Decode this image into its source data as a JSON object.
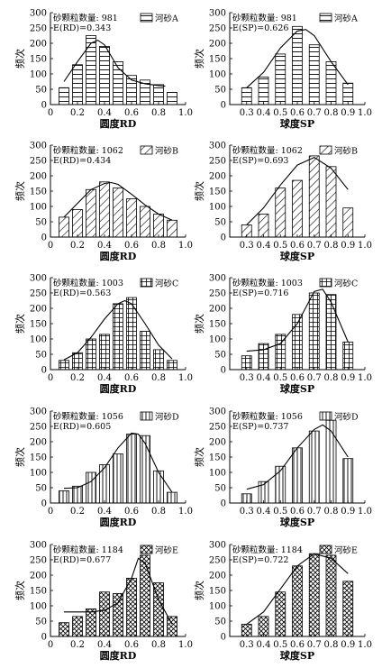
{
  "y_axis_label": "频次",
  "chart_data": [
    {
      "id": "A-RD",
      "type": "bar",
      "xlabel": "圆度RD",
      "ylabel": "频次",
      "count_label": "砂颗粒数量: 981",
      "stat_label": "E(RD)=0.343",
      "legend": "河砂A",
      "pattern": "hlines",
      "xlim": [
        0,
        1
      ],
      "x_ticks": [
        "0",
        "0.2",
        "0.4",
        "0.6",
        "0.8",
        "1.0"
      ],
      "ylim": [
        0,
        300
      ],
      "y_ticks": [
        "0",
        "50",
        "100",
        "150",
        "200",
        "250",
        "300"
      ],
      "x": [
        0.1,
        0.2,
        0.3,
        0.4,
        0.5,
        0.6,
        0.7,
        0.8,
        0.9
      ],
      "values": [
        55,
        130,
        225,
        190,
        140,
        95,
        80,
        65,
        40
      ],
      "curve": [
        [
          0.1,
          75
        ],
        [
          0.2,
          140
        ],
        [
          0.3,
          200
        ],
        [
          0.35,
          210
        ],
        [
          0.4,
          195
        ],
        [
          0.5,
          120
        ],
        [
          0.6,
          80
        ],
        [
          0.7,
          68
        ],
        [
          0.8,
          62
        ],
        [
          0.85,
          60
        ]
      ]
    },
    {
      "id": "A-SP",
      "type": "bar",
      "xlabel": "球度SP",
      "ylabel": "频次",
      "count_label": "砂颗粒数量: 981",
      "stat_label": "E(SP)=0.626",
      "legend": "河砂A",
      "pattern": "hlines",
      "xlim": [
        0.2,
        1.0
      ],
      "x_ticks": [
        "0.3",
        "0.4",
        "0.5",
        "0.6",
        "0.7",
        "0.8",
        "0.9",
        "1.0"
      ],
      "ylim": [
        0,
        300
      ],
      "y_ticks": [
        "0",
        "50",
        "100",
        "150",
        "200",
        "250",
        "300"
      ],
      "x": [
        0.3,
        0.4,
        0.5,
        0.6,
        0.7,
        0.8,
        0.9
      ],
      "values": [
        55,
        90,
        165,
        255,
        195,
        140,
        70
      ],
      "curve": [
        [
          0.3,
          55
        ],
        [
          0.4,
          105
        ],
        [
          0.5,
          185
        ],
        [
          0.6,
          240
        ],
        [
          0.65,
          245
        ],
        [
          0.7,
          225
        ],
        [
          0.8,
          140
        ],
        [
          0.9,
          65
        ]
      ]
    },
    {
      "id": "B-RD",
      "type": "bar",
      "xlabel": "圆度RD",
      "ylabel": "频次",
      "count_label": "砂颗粒数量: 1062",
      "stat_label": "E(RD)=0.434",
      "legend": "河砂B",
      "pattern": "diag",
      "xlim": [
        0,
        1
      ],
      "x_ticks": [
        "0",
        "0.2",
        "0.4",
        "0.6",
        "0.8",
        "1.0"
      ],
      "ylim": [
        0,
        300
      ],
      "y_ticks": [
        "0",
        "50",
        "100",
        "150",
        "200",
        "250",
        "300"
      ],
      "x": [
        0.1,
        0.2,
        0.3,
        0.4,
        0.5,
        0.6,
        0.7,
        0.8,
        0.9
      ],
      "values": [
        65,
        90,
        155,
        180,
        160,
        125,
        100,
        75,
        55
      ],
      "curve": [
        [
          0.1,
          65
        ],
        [
          0.2,
          110
        ],
        [
          0.3,
          155
        ],
        [
          0.4,
          175
        ],
        [
          0.45,
          178
        ],
        [
          0.5,
          172
        ],
        [
          0.6,
          140
        ],
        [
          0.7,
          105
        ],
        [
          0.8,
          75
        ],
        [
          0.9,
          55
        ]
      ]
    },
    {
      "id": "B-SP",
      "type": "bar",
      "xlabel": "球度SP",
      "ylabel": "频次",
      "count_label": "砂颗粒数量: 1062",
      "stat_label": "E(SP)=0.693",
      "legend": "河砂B",
      "pattern": "diag",
      "xlim": [
        0.2,
        1.0
      ],
      "x_ticks": [
        "0.3",
        "0.4",
        "0.5",
        "0.6",
        "0.7",
        "0.8",
        "0.9",
        "1.0"
      ],
      "ylim": [
        0,
        300
      ],
      "y_ticks": [
        "0",
        "50",
        "100",
        "150",
        "200",
        "250",
        "300"
      ],
      "x": [
        0.3,
        0.4,
        0.5,
        0.6,
        0.7,
        0.8,
        0.9
      ],
      "values": [
        40,
        75,
        160,
        185,
        265,
        230,
        95
      ],
      "curve": [
        [
          0.3,
          40
        ],
        [
          0.4,
          95
        ],
        [
          0.5,
          170
        ],
        [
          0.6,
          235
        ],
        [
          0.7,
          260
        ],
        [
          0.8,
          225
        ],
        [
          0.9,
          155
        ]
      ]
    },
    {
      "id": "C-RD",
      "type": "bar",
      "xlabel": "圆度RD",
      "ylabel": "频次",
      "count_label": "砂颗粒数量: 1003",
      "stat_label": "E(RD)=0.563",
      "legend": "河砂C",
      "pattern": "grid",
      "xlim": [
        0,
        1
      ],
      "x_ticks": [
        "0",
        "0.2",
        "0.4",
        "0.6",
        "0.8",
        "1.0"
      ],
      "ylim": [
        0,
        300
      ],
      "y_ticks": [
        "0",
        "50",
        "100",
        "150",
        "200",
        "250",
        "300"
      ],
      "x": [
        0.1,
        0.2,
        0.3,
        0.4,
        0.5,
        0.6,
        0.7,
        0.8,
        0.9
      ],
      "values": [
        30,
        55,
        100,
        115,
        215,
        235,
        125,
        65,
        30
      ],
      "curve": [
        [
          0.1,
          32
        ],
        [
          0.2,
          55
        ],
        [
          0.3,
          105
        ],
        [
          0.4,
          165
        ],
        [
          0.5,
          215
        ],
        [
          0.55,
          225
        ],
        [
          0.6,
          215
        ],
        [
          0.7,
          150
        ],
        [
          0.8,
          80
        ],
        [
          0.9,
          35
        ]
      ]
    },
    {
      "id": "C-SP",
      "type": "bar",
      "xlabel": "球度SP",
      "ylabel": "频次",
      "count_label": "砂颗粒数量: 1003",
      "stat_label": "E(SP)=0.716",
      "legend": "河砂C",
      "pattern": "grid",
      "xlim": [
        0.2,
        1.0
      ],
      "x_ticks": [
        "0.3",
        "0.4",
        "0.5",
        "0.6",
        "0.7",
        "0.8",
        "0.9",
        "1.0"
      ],
      "ylim": [
        0,
        300
      ],
      "y_ticks": [
        "0",
        "50",
        "100",
        "150",
        "200",
        "250",
        "300"
      ],
      "x": [
        0.3,
        0.4,
        0.5,
        0.6,
        0.7,
        0.8,
        0.9
      ],
      "values": [
        45,
        85,
        115,
        180,
        250,
        245,
        90
      ],
      "curve": [
        [
          0.3,
          60
        ],
        [
          0.4,
          65
        ],
        [
          0.5,
          85
        ],
        [
          0.6,
          150
        ],
        [
          0.7,
          255
        ],
        [
          0.75,
          262
        ],
        [
          0.8,
          220
        ],
        [
          0.9,
          90
        ]
      ]
    },
    {
      "id": "D-RD",
      "type": "bar",
      "xlabel": "圆度RD",
      "ylabel": "频次",
      "count_label": "砂颗粒数量: 1056",
      "stat_label": "E(RD)=0.605",
      "legend": "河砂D",
      "pattern": "vlines",
      "xlim": [
        0,
        1
      ],
      "x_ticks": [
        "0",
        "0.2",
        "0.4",
        "0.6",
        "0.8",
        "1.0"
      ],
      "ylim": [
        0,
        300
      ],
      "y_ticks": [
        "0",
        "50",
        "100",
        "150",
        "200",
        "250",
        "300"
      ],
      "x": [
        0.1,
        0.2,
        0.3,
        0.4,
        0.5,
        0.6,
        0.7,
        0.8,
        0.9
      ],
      "values": [
        40,
        55,
        100,
        125,
        160,
        225,
        220,
        105,
        35
      ],
      "curve": [
        [
          0.1,
          48
        ],
        [
          0.2,
          50
        ],
        [
          0.3,
          70
        ],
        [
          0.4,
          115
        ],
        [
          0.5,
          180
        ],
        [
          0.6,
          228
        ],
        [
          0.65,
          225
        ],
        [
          0.7,
          195
        ],
        [
          0.8,
          100
        ],
        [
          0.9,
          35
        ]
      ]
    },
    {
      "id": "D-SP",
      "type": "bar",
      "xlabel": "球度SP",
      "ylabel": "频次",
      "count_label": "砂颗粒数量: 1056",
      "stat_label": "E(SP)=0.737",
      "legend": "河砂D",
      "pattern": "vlines",
      "xlim": [
        0.2,
        1.0
      ],
      "x_ticks": [
        "0.3",
        "0.4",
        "0.5",
        "0.6",
        "0.7",
        "0.8",
        "0.9",
        "1.0"
      ],
      "ylim": [
        0,
        300
      ],
      "y_ticks": [
        "0",
        "50",
        "100",
        "150",
        "200",
        "250",
        "300"
      ],
      "x": [
        0.3,
        0.4,
        0.5,
        0.6,
        0.7,
        0.8,
        0.9
      ],
      "values": [
        30,
        70,
        120,
        180,
        235,
        270,
        145
      ],
      "curve": [
        [
          0.3,
          45
        ],
        [
          0.4,
          60
        ],
        [
          0.5,
          105
        ],
        [
          0.6,
          180
        ],
        [
          0.7,
          240
        ],
        [
          0.75,
          255
        ],
        [
          0.8,
          235
        ],
        [
          0.9,
          150
        ]
      ]
    },
    {
      "id": "E-RD",
      "type": "bar",
      "xlabel": "圆度RD",
      "ylabel": "频次",
      "count_label": "砂颗粒数量: 1184",
      "stat_label": "E(RD)=0.677",
      "legend": "河砂E",
      "pattern": "cross",
      "xlim": [
        0,
        1
      ],
      "x_ticks": [
        "0",
        "0.2",
        "0.4",
        "0.6",
        "0.8",
        "1.0"
      ],
      "ylim": [
        0,
        300
      ],
      "y_ticks": [
        "0",
        "50",
        "100",
        "150",
        "200",
        "250",
        "300"
      ],
      "x": [
        0.1,
        0.2,
        0.3,
        0.4,
        0.5,
        0.6,
        0.7,
        0.8,
        0.9
      ],
      "values": [
        45,
        65,
        90,
        145,
        140,
        190,
        265,
        175,
        65
      ],
      "curve": [
        [
          0.1,
          80
        ],
        [
          0.3,
          80
        ],
        [
          0.4,
          85
        ],
        [
          0.5,
          110
        ],
        [
          0.6,
          190
        ],
        [
          0.65,
          255
        ],
        [
          0.7,
          240
        ],
        [
          0.8,
          120
        ],
        [
          0.9,
          40
        ]
      ]
    },
    {
      "id": "E-SP",
      "type": "bar",
      "xlabel": "球度SP",
      "ylabel": "频次",
      "count_label": "砂颗粒数量: 1184",
      "stat_label": "E(SP)=0.722",
      "legend": "河砂E",
      "pattern": "cross",
      "xlim": [
        0.2,
        1.0
      ],
      "x_ticks": [
        "0.3",
        "0.4",
        "0.5",
        "0.6",
        "0.7",
        "0.8",
        "0.9",
        "1.0"
      ],
      "ylim": [
        0,
        300
      ],
      "y_ticks": [
        "0",
        "50",
        "100",
        "150",
        "200",
        "250",
        "300"
      ],
      "x": [
        0.3,
        0.4,
        0.5,
        0.6,
        0.7,
        0.8,
        0.9
      ],
      "values": [
        40,
        65,
        145,
        230,
        270,
        265,
        180
      ],
      "curve": [
        [
          0.3,
          40
        ],
        [
          0.4,
          80
        ],
        [
          0.5,
          155
        ],
        [
          0.6,
          230
        ],
        [
          0.7,
          270
        ],
        [
          0.8,
          255
        ],
        [
          0.9,
          205
        ]
      ]
    }
  ]
}
